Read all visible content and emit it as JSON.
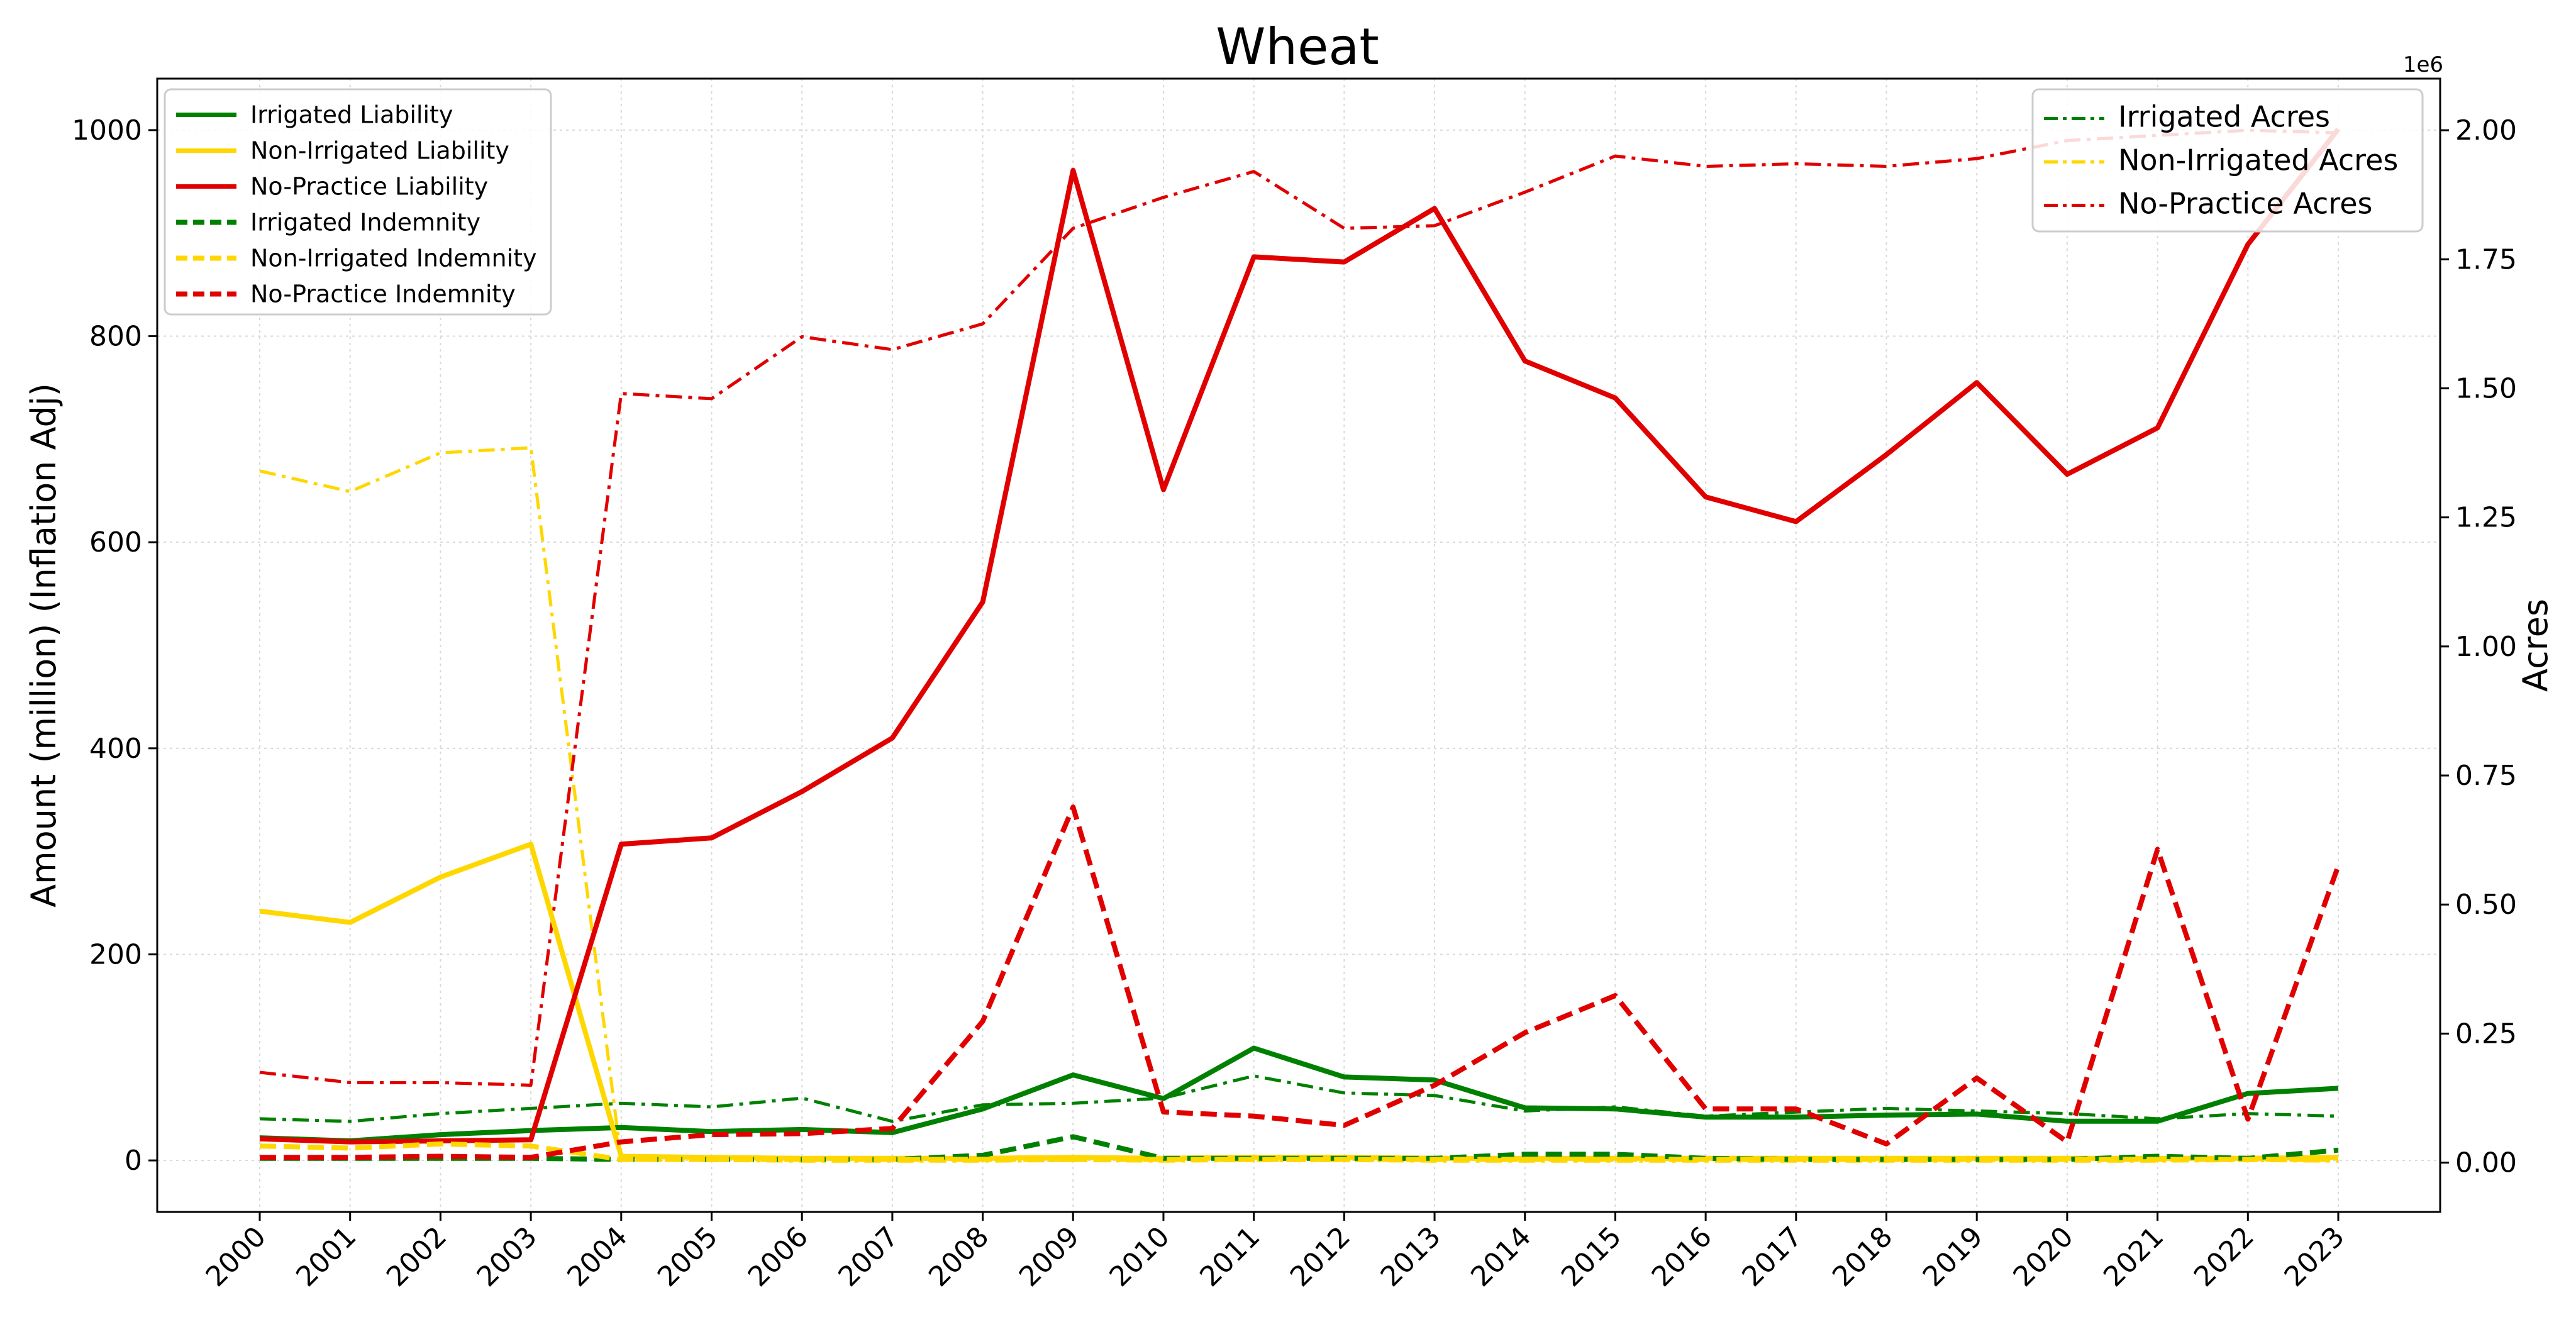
{
  "chart_data": {
    "type": "line",
    "title": "Wheat",
    "ylabel": "Amount (million) (Inflation Adj)",
    "y2label": "Acres",
    "y2_offset_label": "1e6",
    "categories": [
      "2000",
      "2001",
      "2002",
      "2003",
      "2004",
      "2005",
      "2006",
      "2007",
      "2008",
      "2009",
      "2010",
      "2011",
      "2012",
      "2013",
      "2014",
      "2015",
      "2016",
      "2017",
      "2018",
      "2019",
      "2020",
      "2021",
      "2022",
      "2023"
    ],
    "ylim": [
      -50,
      1050
    ],
    "yticks": [
      0,
      200,
      400,
      600,
      800,
      1000
    ],
    "y2lim": [
      -0.0955,
      2.1
    ],
    "y2ticks": [
      0.0,
      0.25,
      0.5,
      0.75,
      1.0,
      1.25,
      1.5,
      1.75,
      2.0
    ],
    "y2ticklabels": [
      "0.00",
      "0.25",
      "0.50",
      "0.75",
      "1.00",
      "1.25",
      "1.50",
      "1.75",
      "2.00"
    ],
    "grid": true,
    "legend_left_position": "upper-left",
    "legend_right_position": "upper-right",
    "colors": {
      "green": "#008000",
      "gold": "#FFD700",
      "red": "#E00000",
      "grid": "#d9d9d9"
    },
    "series_left": [
      {
        "name": "Irrigated Liability",
        "color": "#008000",
        "style": "solid",
        "values": [
          22,
          19,
          25,
          29,
          32,
          28,
          30,
          27,
          50,
          83,
          60,
          109,
          81,
          78,
          51,
          50,
          42,
          42,
          44,
          45,
          38,
          38,
          65,
          70
        ]
      },
      {
        "name": "Non-Irrigated Liability",
        "color": "#FFD700",
        "style": "solid",
        "values": [
          242,
          231,
          275,
          307,
          4,
          3,
          2,
          2,
          2,
          3,
          2,
          3,
          3,
          2,
          2,
          2,
          2,
          2,
          2,
          2,
          2,
          2,
          2,
          3
        ]
      },
      {
        "name": "No-Practice Liability",
        "color": "#E00000",
        "style": "solid",
        "values": [
          21,
          18,
          19,
          20,
          307,
          313,
          358,
          410,
          542,
          961,
          651,
          877,
          872,
          924,
          776,
          740,
          644,
          620,
          685,
          755,
          666,
          711,
          889,
          1001
        ]
      },
      {
        "name": "Irrigated Indemnity",
        "color": "#008000",
        "style": "dashed",
        "values": [
          2,
          2,
          2,
          2,
          1,
          1,
          1,
          1,
          5,
          23,
          2,
          2,
          2,
          2,
          6,
          6,
          2,
          1,
          1,
          1,
          1,
          4,
          2,
          10
        ]
      },
      {
        "name": "Non-Irrigated Indemnity",
        "color": "#FFD700",
        "style": "dashed",
        "values": [
          14,
          12,
          16,
          14,
          1,
          1,
          1,
          1,
          1,
          1,
          1,
          1,
          1,
          1,
          1,
          1,
          1,
          1,
          1,
          1,
          1,
          1,
          1,
          1
        ]
      },
      {
        "name": "No-Practice Indemnity",
        "color": "#E00000",
        "style": "dashed",
        "values": [
          3,
          3,
          4,
          3,
          18,
          25,
          26,
          31,
          135,
          343,
          47,
          43,
          34,
          73,
          124,
          160,
          50,
          50,
          16,
          80,
          18,
          302,
          40,
          286
        ]
      }
    ],
    "series_right": [
      {
        "name": "Irrigated Acres",
        "color": "#008000",
        "style": "dashdot",
        "values": [
          0.085,
          0.08,
          0.095,
          0.105,
          0.115,
          0.108,
          0.125,
          0.08,
          0.112,
          0.115,
          0.125,
          0.168,
          0.135,
          0.13,
          0.1,
          0.108,
          0.09,
          0.098,
          0.105,
          0.1,
          0.095,
          0.085,
          0.095,
          0.09
        ]
      },
      {
        "name": "Non-Irrigated Acres",
        "color": "#FFD700",
        "style": "dashdot",
        "values": [
          1.34,
          1.3,
          1.375,
          1.385,
          0.005,
          0.004,
          0.003,
          0.003,
          0.003,
          0.004,
          0.003,
          0.004,
          0.004,
          0.003,
          0.003,
          0.003,
          0.003,
          0.003,
          0.003,
          0.003,
          0.003,
          0.003,
          0.004,
          0.003
        ]
      },
      {
        "name": "No-Practice Acres",
        "color": "#E00000",
        "style": "dashdot",
        "values": [
          0.175,
          0.155,
          0.155,
          0.15,
          1.49,
          1.48,
          1.6,
          1.575,
          1.625,
          1.81,
          1.87,
          1.92,
          1.81,
          1.815,
          1.88,
          1.95,
          1.93,
          1.935,
          1.93,
          1.945,
          1.98,
          1.99,
          2.0,
          1.995
        ]
      }
    ]
  }
}
